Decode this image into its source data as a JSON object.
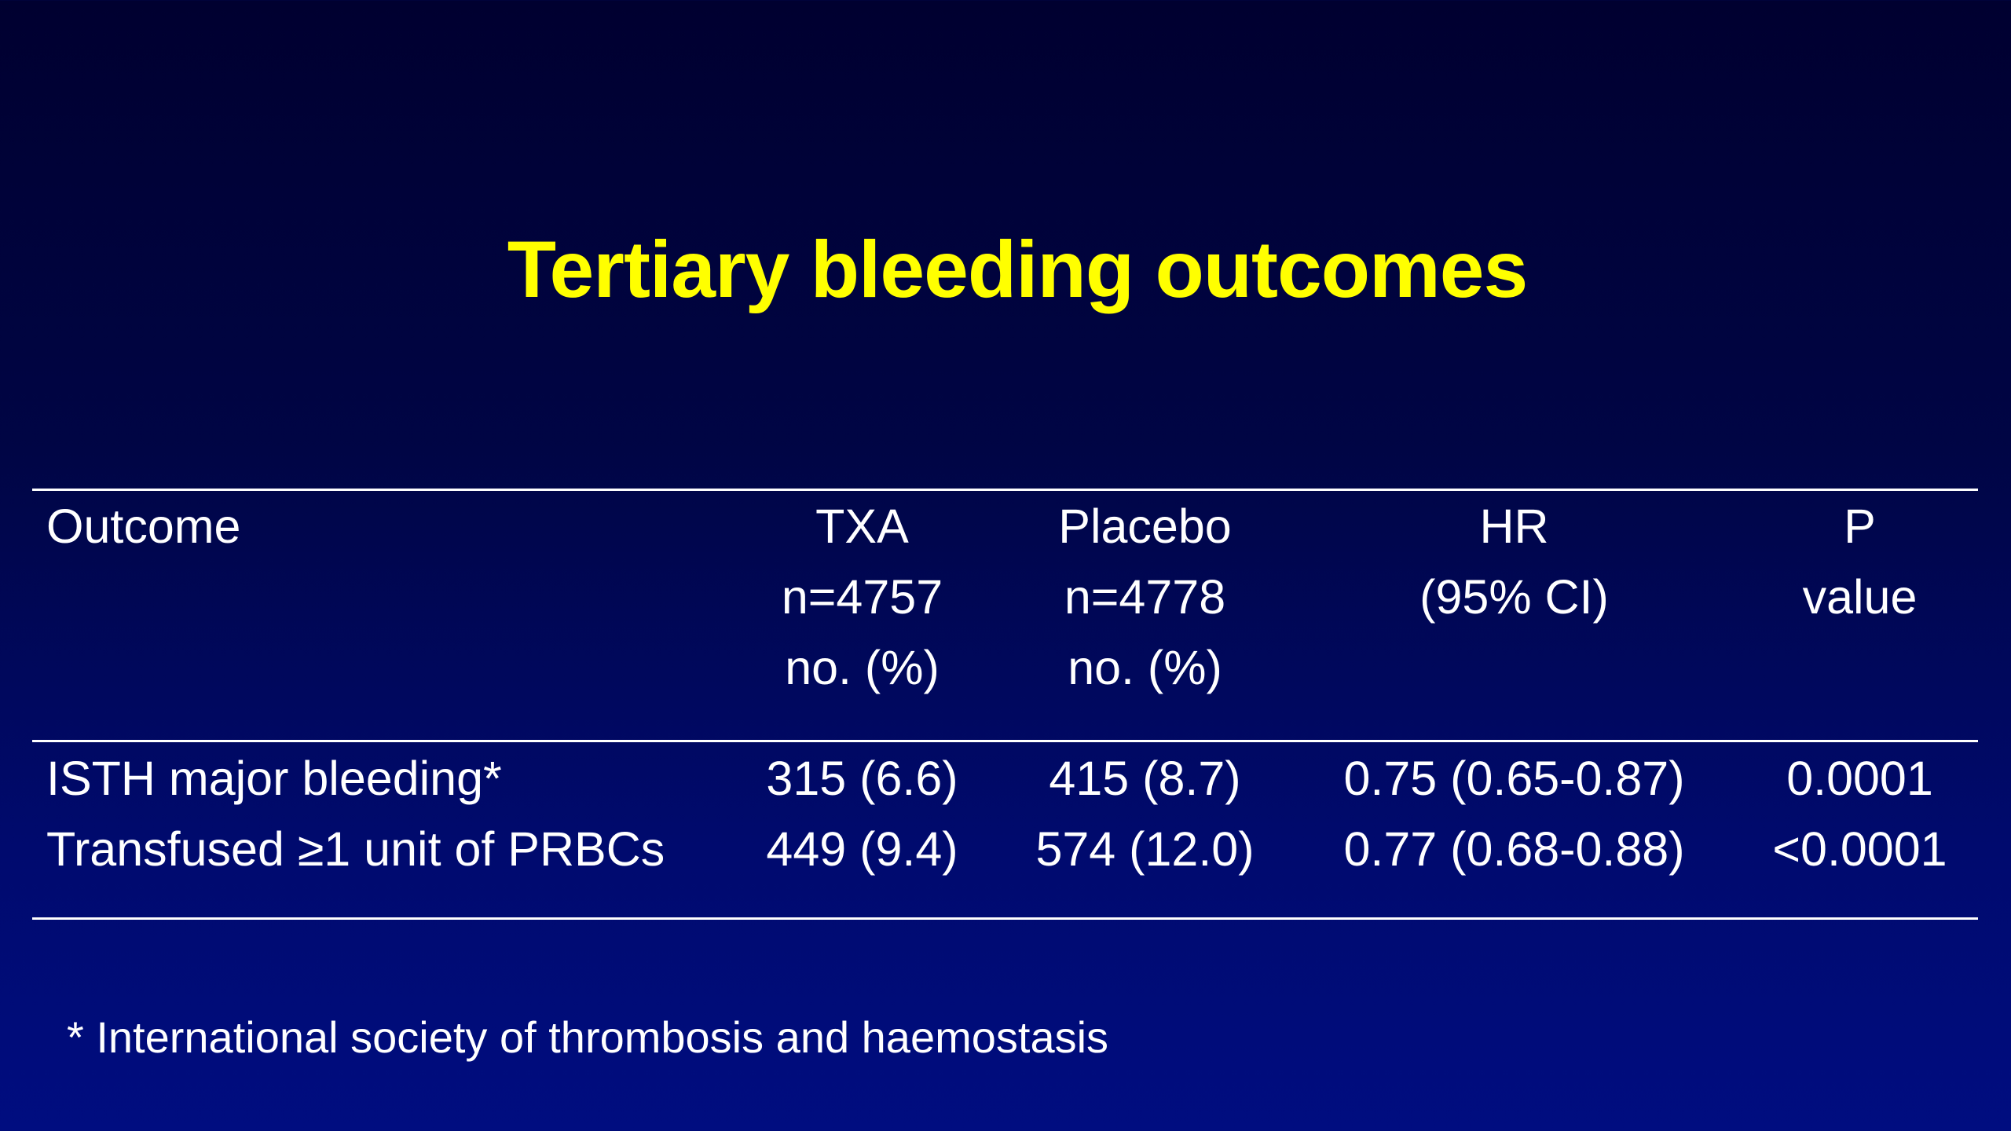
{
  "slide": {
    "title": "Tertiary bleeding outcomes",
    "title_color": "#ffff00",
    "background_color": "#000a6e"
  },
  "table": {
    "headers": {
      "outcome": [
        "Outcome"
      ],
      "txa": [
        "TXA",
        "n=4757",
        "no. (%)"
      ],
      "placebo": [
        "Placebo",
        "n=4778",
        "no. (%)"
      ],
      "hr": [
        "HR",
        "(95% CI)"
      ],
      "p": [
        "P",
        "value"
      ]
    },
    "rows": [
      {
        "outcome": "ISTH major bleeding*",
        "txa": "315 (6.6)",
        "placebo": "415 (8.7)",
        "hr": "0.75 (0.65-0.87)",
        "p": "0.0001"
      },
      {
        "outcome": "Transfused ≥1 unit of PRBCs",
        "txa": "449 (9.4)",
        "placebo": "574 (12.0)",
        "hr": "0.77 (0.68-0.88)",
        "p": "<0.0001"
      }
    ]
  },
  "footnote": "* International society of thrombosis and haemostasis"
}
